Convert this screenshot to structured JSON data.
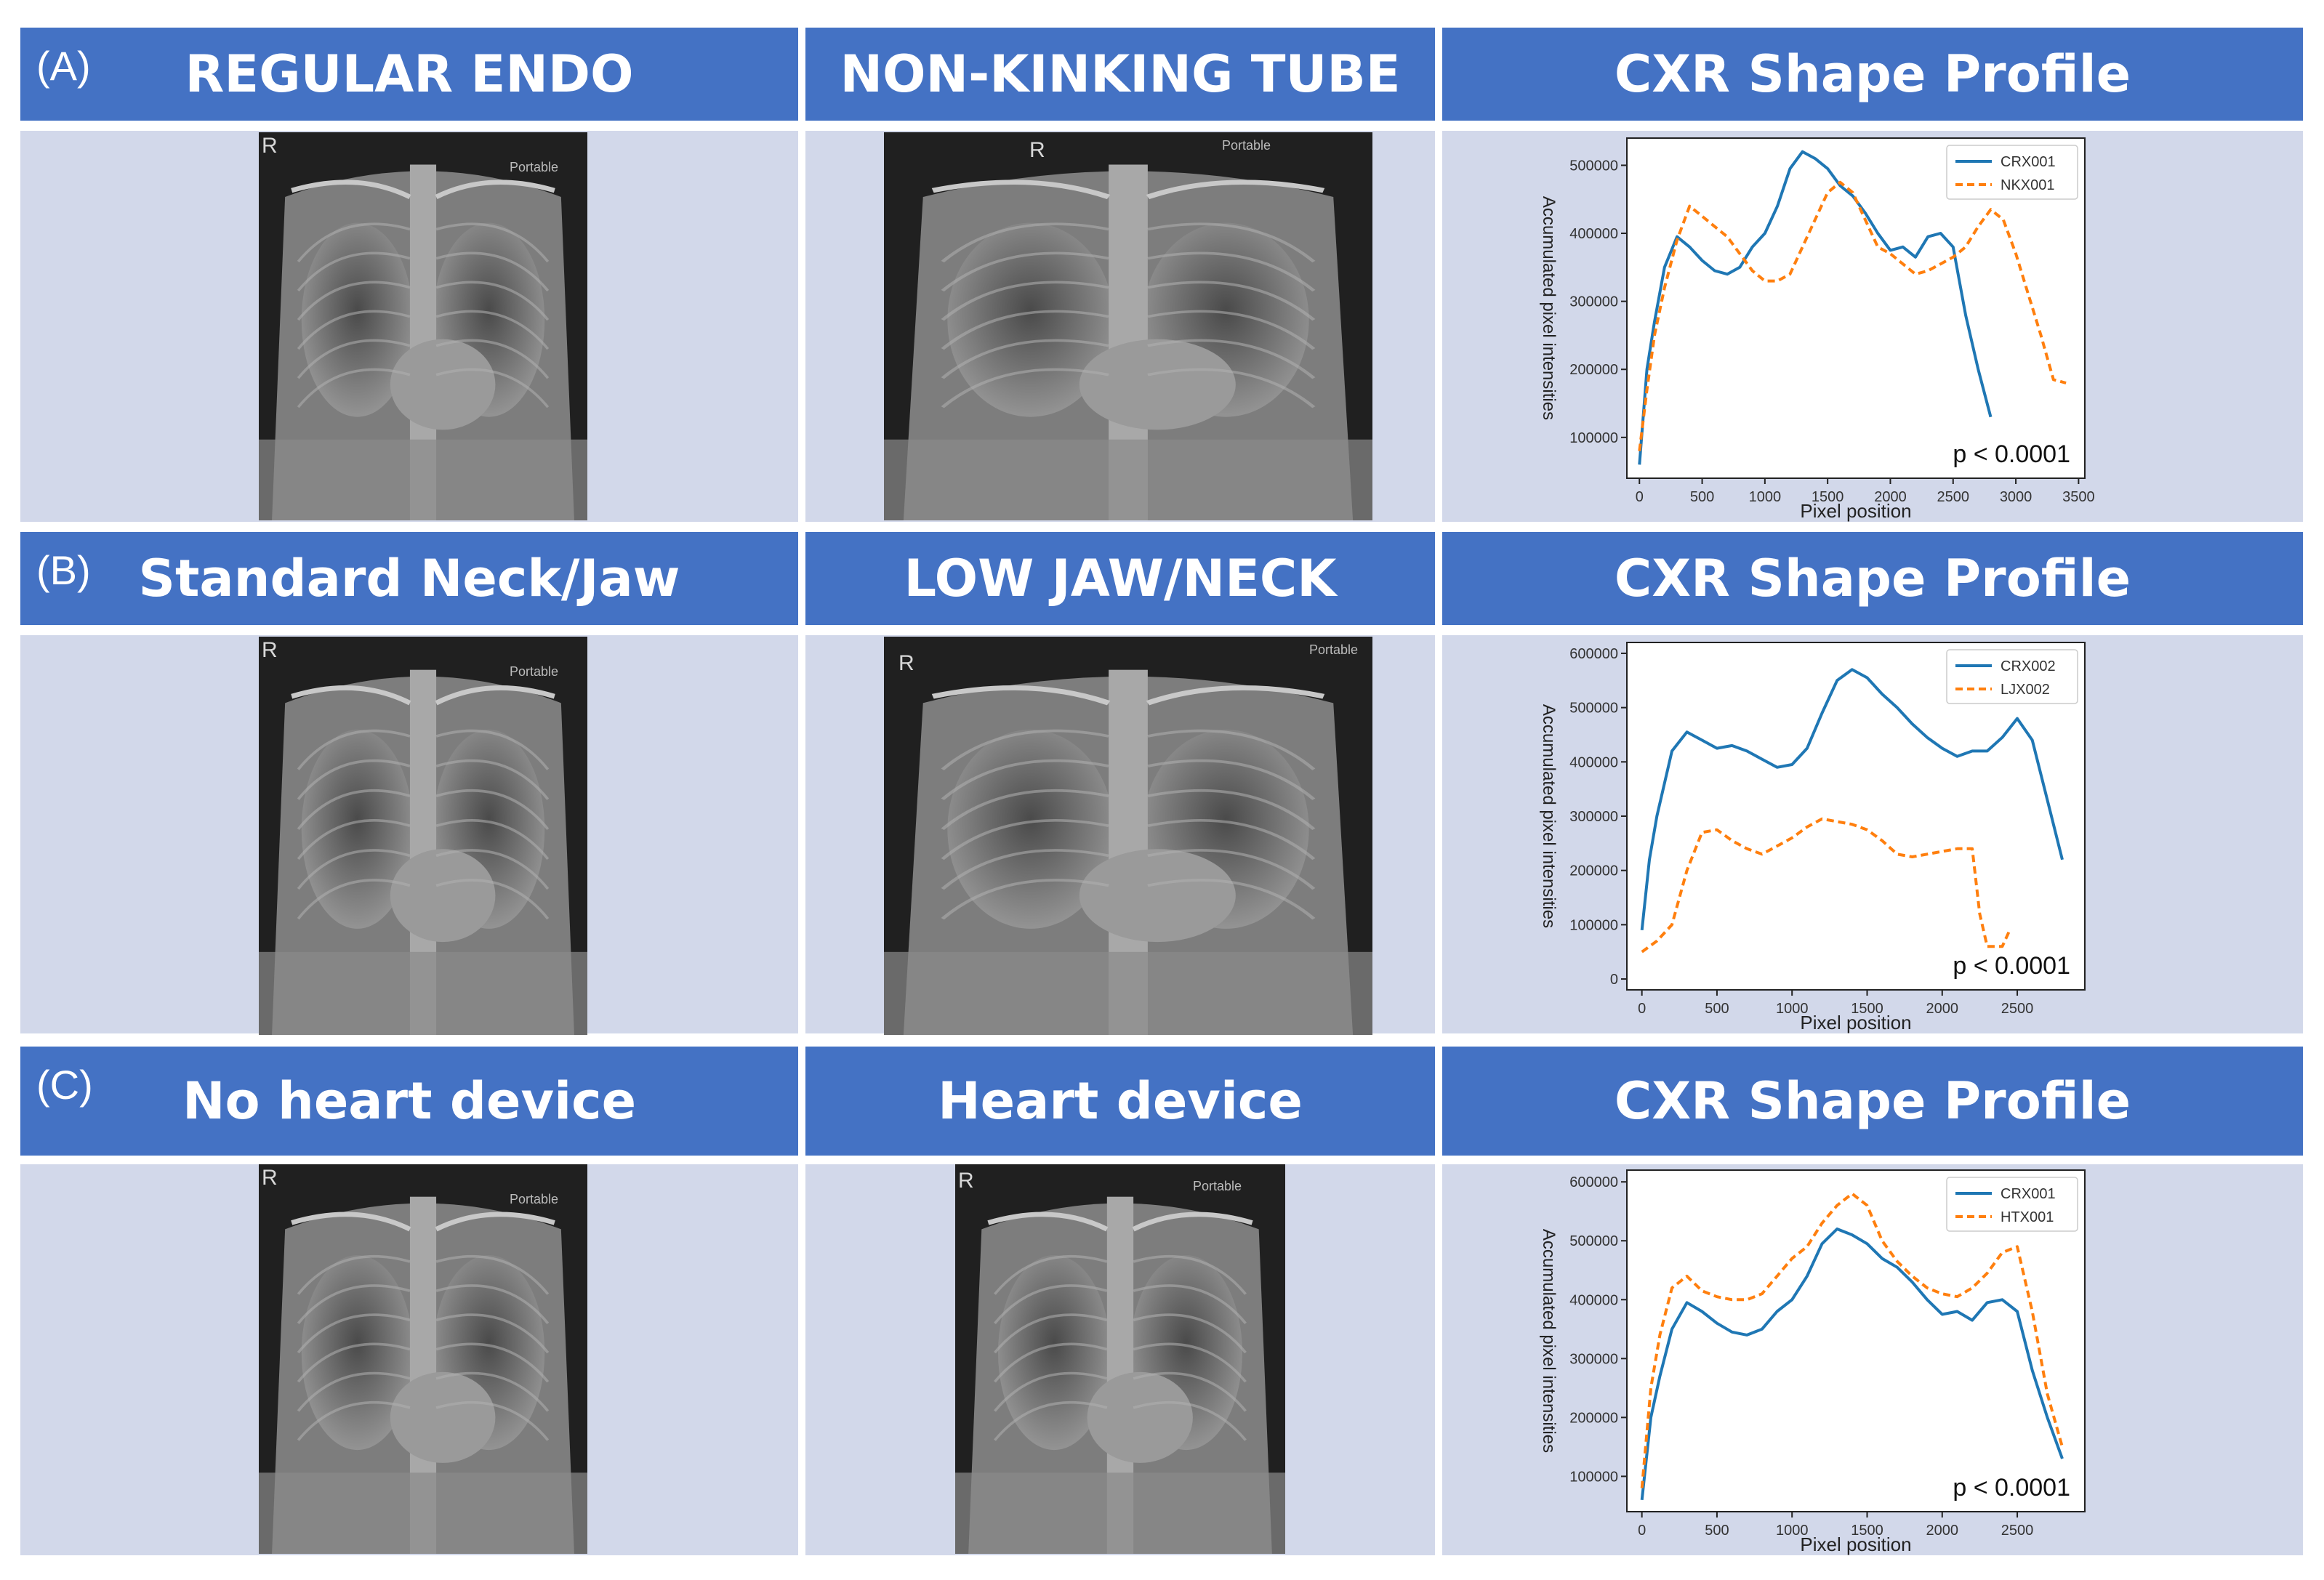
{
  "rows": [
    {
      "tag": "(A)",
      "left_title": "REGULAR ENDO",
      "mid_title": "NON-KINKING TUBE",
      "right_title": "CXR Shape Profile",
      "left_xray": {
        "marker": "R",
        "note": "Portable"
      },
      "mid_xray": {
        "marker": "R",
        "note": "Portable"
      }
    },
    {
      "tag": "(B)",
      "left_title": "Standard Neck/Jaw",
      "mid_title": "LOW JAW/NECK",
      "right_title": "CXR Shape Profile",
      "left_xray": {
        "marker": "R",
        "note": "Portable"
      },
      "mid_xray": {
        "marker": "R",
        "note": "Portable"
      }
    },
    {
      "tag": "(C)",
      "left_title": "No heart device",
      "mid_title": "Heart device",
      "right_title": "CXR Shape Profile",
      "left_xray": {
        "marker": "R",
        "note": "Portable"
      },
      "mid_xray": {
        "marker": "R",
        "note": "Portable"
      }
    }
  ],
  "colors": {
    "header": "#4472c4",
    "panel": "#d2d8ea",
    "series1": "#1f77b4",
    "series2": "#ff7f0e"
  },
  "chart_data": [
    {
      "type": "line",
      "xlabel": "Pixel position",
      "ylabel": "Accumulated pixel intensities",
      "xlim": [
        -100,
        3550
      ],
      "ylim": [
        40000,
        540000
      ],
      "xticks": [
        0,
        500,
        1000,
        1500,
        2000,
        2500,
        3000,
        3500
      ],
      "yticks": [
        100000,
        200000,
        300000,
        400000,
        500000
      ],
      "legend": "top-right",
      "annotation": "p < 0.0001",
      "series": [
        {
          "name": "CRX001",
          "style": "solid",
          "x": [
            0,
            60,
            120,
            200,
            300,
            400,
            500,
            600,
            700,
            800,
            900,
            1000,
            1100,
            1200,
            1300,
            1400,
            1500,
            1600,
            1700,
            1800,
            1900,
            2000,
            2100,
            2200,
            2300,
            2400,
            2500,
            2600,
            2700,
            2800
          ],
          "y": [
            60000,
            200000,
            270000,
            350000,
            395000,
            380000,
            360000,
            345000,
            340000,
            350000,
            380000,
            400000,
            440000,
            495000,
            520000,
            510000,
            495000,
            470000,
            455000,
            430000,
            400000,
            375000,
            380000,
            365000,
            395000,
            400000,
            380000,
            280000,
            200000,
            130000
          ]
        },
        {
          "name": "NKX001",
          "style": "dashed",
          "x": [
            0,
            60,
            120,
            200,
            300,
            400,
            500,
            600,
            700,
            800,
            900,
            1000,
            1100,
            1200,
            1300,
            1400,
            1500,
            1600,
            1700,
            1800,
            1900,
            2000,
            2100,
            2200,
            2300,
            2400,
            2500,
            2600,
            2700,
            2800,
            2900,
            3000,
            3100,
            3200,
            3300,
            3400
          ],
          "y": [
            80000,
            170000,
            250000,
            320000,
            390000,
            440000,
            425000,
            410000,
            395000,
            370000,
            345000,
            330000,
            330000,
            340000,
            380000,
            420000,
            460000,
            475000,
            460000,
            420000,
            380000,
            370000,
            355000,
            340000,
            345000,
            355000,
            365000,
            380000,
            410000,
            435000,
            420000,
            370000,
            310000,
            250000,
            185000,
            180000
          ]
        }
      ]
    },
    {
      "type": "line",
      "xlabel": "Pixel position",
      "ylabel": "Accumulated pixel intensities",
      "xlim": [
        -100,
        2950
      ],
      "ylim": [
        -20000,
        620000
      ],
      "xticks": [
        0,
        500,
        1000,
        1500,
        2000,
        2500
      ],
      "yticks": [
        0,
        100000,
        200000,
        300000,
        400000,
        500000,
        600000
      ],
      "legend": "top-right",
      "annotation": "p < 0.0001",
      "series": [
        {
          "name": "CRX002",
          "style": "solid",
          "x": [
            0,
            50,
            100,
            200,
            300,
            400,
            500,
            600,
            700,
            800,
            900,
            1000,
            1100,
            1200,
            1300,
            1400,
            1500,
            1600,
            1700,
            1800,
            1900,
            2000,
            2100,
            2200,
            2300,
            2400,
            2500,
            2600,
            2700,
            2800
          ],
          "y": [
            90000,
            220000,
            300000,
            420000,
            455000,
            440000,
            425000,
            430000,
            420000,
            405000,
            390000,
            395000,
            425000,
            490000,
            550000,
            570000,
            555000,
            525000,
            500000,
            470000,
            445000,
            425000,
            410000,
            420000,
            420000,
            445000,
            480000,
            440000,
            330000,
            220000
          ]
        },
        {
          "name": "LJX002",
          "style": "dashed",
          "x": [
            0,
            100,
            200,
            300,
            400,
            500,
            600,
            700,
            800,
            900,
            1000,
            1100,
            1200,
            1300,
            1400,
            1500,
            1600,
            1700,
            1800,
            1900,
            2000,
            2100,
            2200,
            2250,
            2300,
            2400,
            2450
          ],
          "y": [
            50000,
            70000,
            100000,
            200000,
            270000,
            275000,
            255000,
            240000,
            230000,
            245000,
            260000,
            280000,
            295000,
            290000,
            285000,
            275000,
            255000,
            230000,
            225000,
            230000,
            235000,
            240000,
            240000,
            120000,
            60000,
            60000,
            90000
          ]
        }
      ]
    },
    {
      "type": "line",
      "xlabel": "Pixel position",
      "ylabel": "Accumulated pixel intensities",
      "xlim": [
        -100,
        2950
      ],
      "ylim": [
        40000,
        620000
      ],
      "xticks": [
        0,
        500,
        1000,
        1500,
        2000,
        2500
      ],
      "yticks": [
        100000,
        200000,
        300000,
        400000,
        500000,
        600000
      ],
      "legend": "top-right",
      "annotation": "p < 0.0001",
      "series": [
        {
          "name": "CRX001",
          "style": "solid",
          "x": [
            0,
            60,
            120,
            200,
            300,
            400,
            500,
            600,
            700,
            800,
            900,
            1000,
            1100,
            1200,
            1300,
            1400,
            1500,
            1600,
            1700,
            1800,
            1900,
            2000,
            2100,
            2200,
            2300,
            2400,
            2500,
            2600,
            2700,
            2800
          ],
          "y": [
            60000,
            200000,
            270000,
            350000,
            395000,
            380000,
            360000,
            345000,
            340000,
            350000,
            380000,
            400000,
            440000,
            495000,
            520000,
            510000,
            495000,
            470000,
            455000,
            430000,
            400000,
            375000,
            380000,
            365000,
            395000,
            400000,
            380000,
            280000,
            200000,
            130000
          ]
        },
        {
          "name": "HTX001",
          "style": "dashed",
          "x": [
            0,
            60,
            120,
            200,
            300,
            400,
            500,
            600,
            700,
            800,
            900,
            1000,
            1100,
            1200,
            1300,
            1400,
            1500,
            1600,
            1700,
            1800,
            1900,
            2000,
            2100,
            2200,
            2300,
            2400,
            2500,
            2600,
            2700,
            2800
          ],
          "y": [
            80000,
            250000,
            340000,
            420000,
            440000,
            415000,
            405000,
            400000,
            400000,
            410000,
            440000,
            470000,
            490000,
            530000,
            560000,
            580000,
            560000,
            500000,
            465000,
            440000,
            420000,
            410000,
            405000,
            420000,
            445000,
            480000,
            490000,
            380000,
            240000,
            150000
          ]
        }
      ]
    }
  ]
}
